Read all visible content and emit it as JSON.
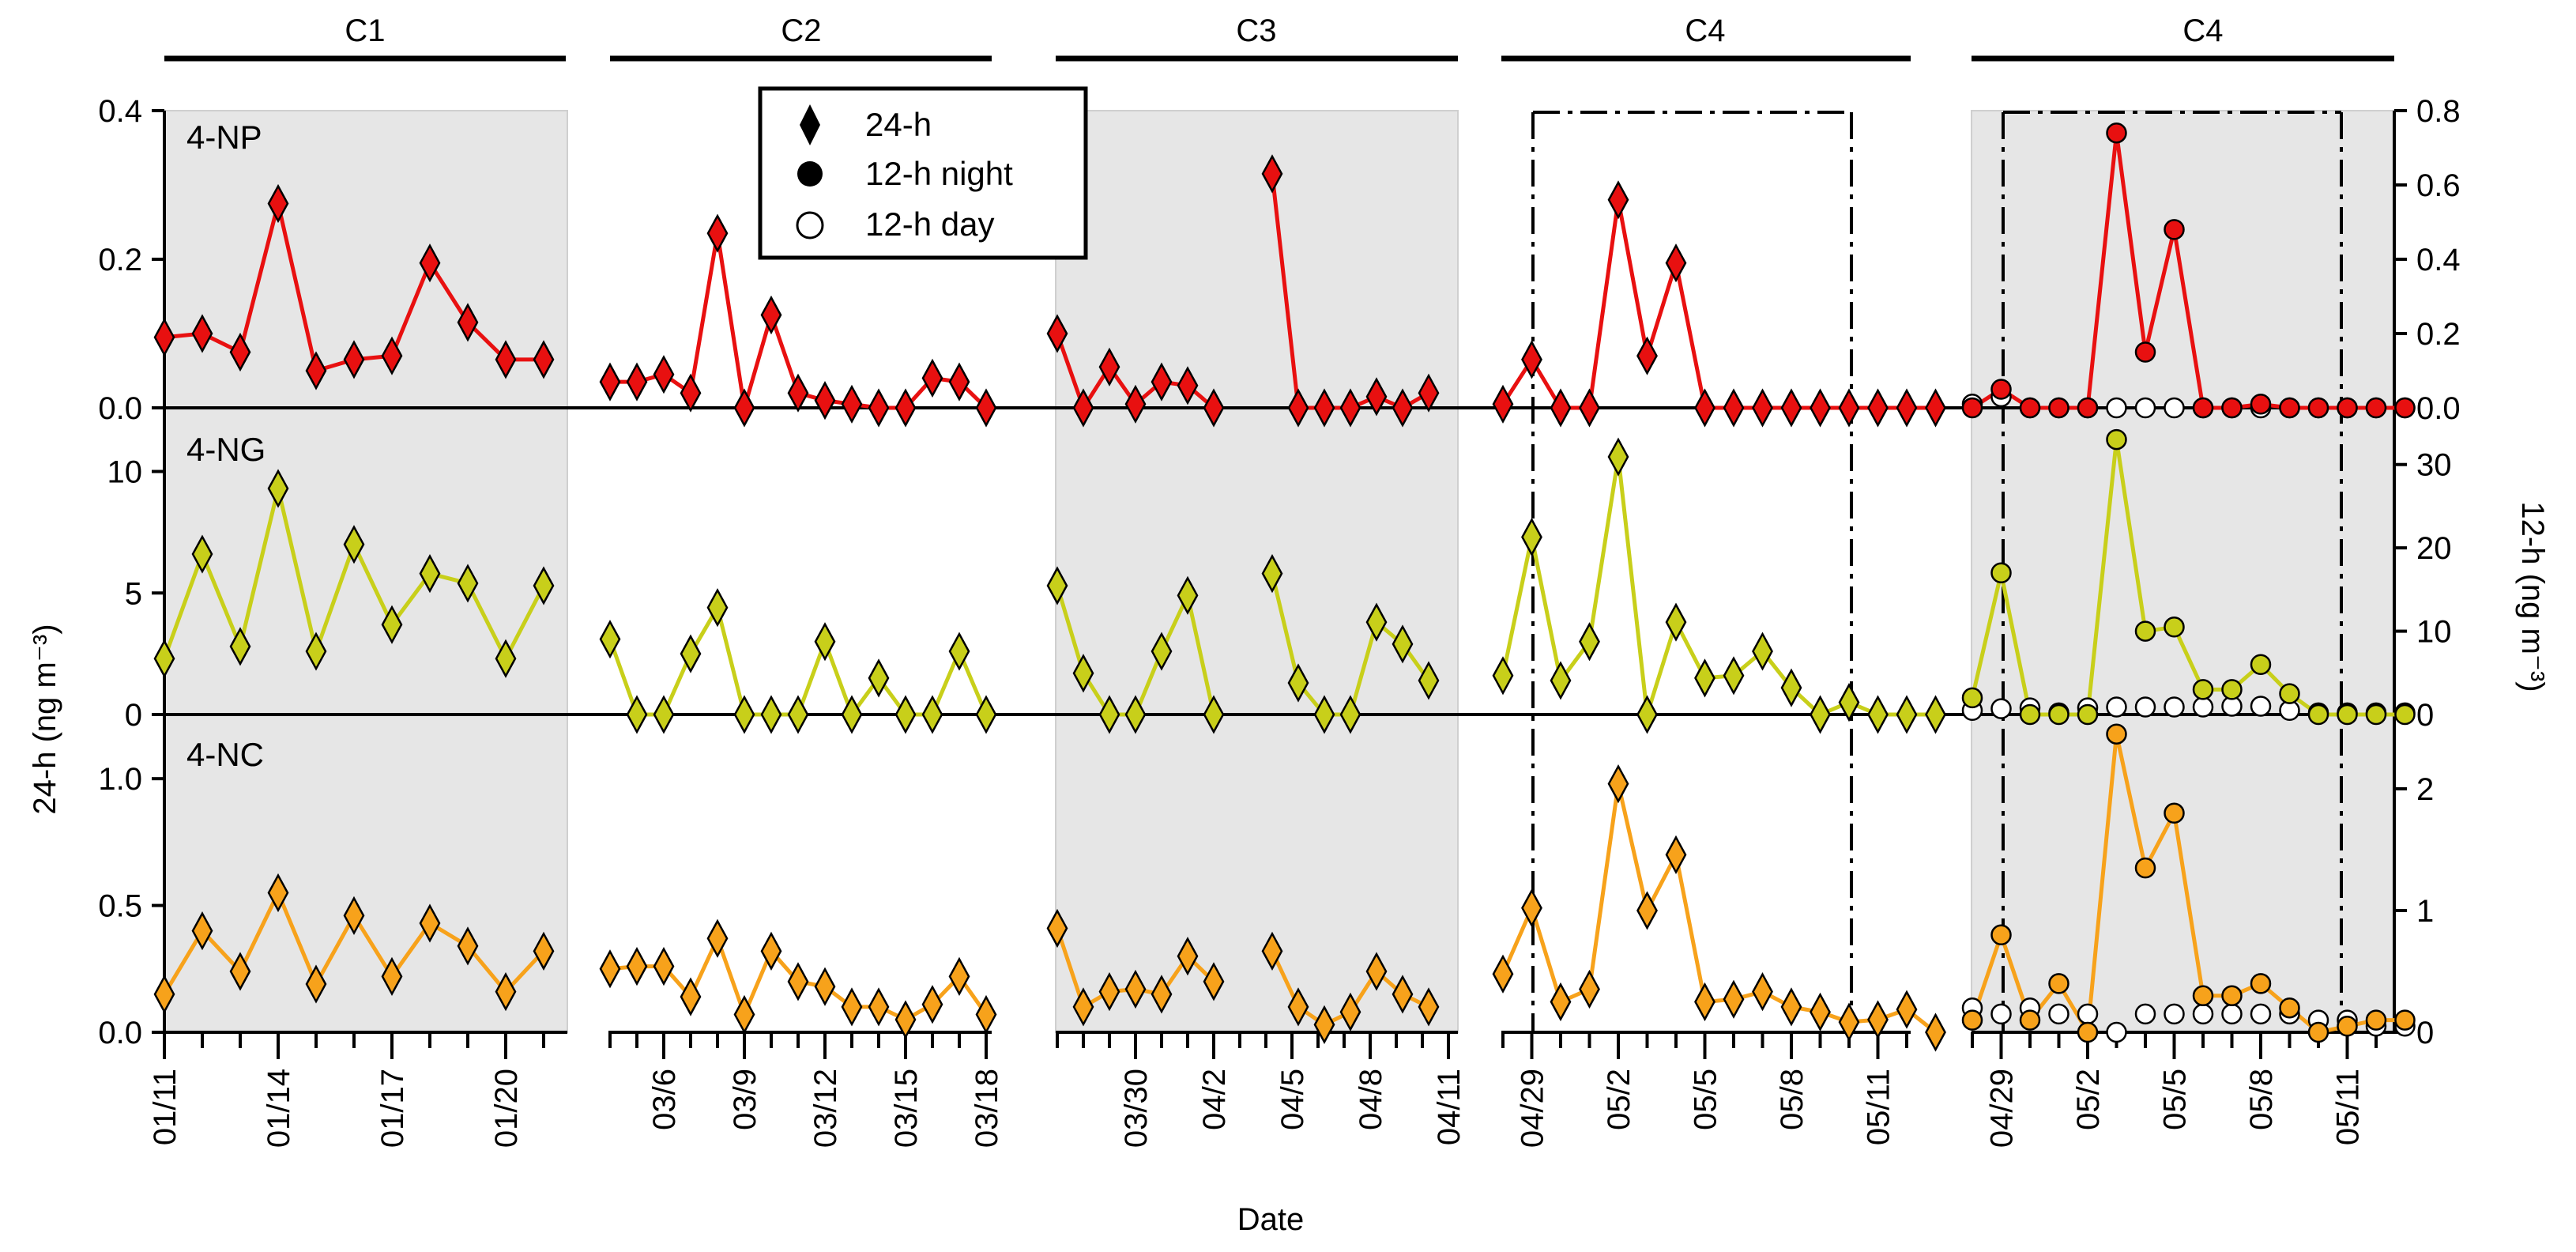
{
  "chart_data": {
    "type": "line",
    "xlabel": "Date",
    "ylabel_left": "24-h (ng m⁻³)",
    "ylabel_right": "12-h (ng m⁻³)",
    "legend": [
      {
        "name": "24-h",
        "marker": "diamond"
      },
      {
        "name": "12-h night",
        "marker": "filled-circle"
      },
      {
        "name": "12-h day",
        "marker": "open-circle"
      }
    ],
    "shaded_groups": [
      "C1",
      "C3",
      "C4 (12-h)"
    ],
    "rows": [
      {
        "label": "4-NP",
        "color": "#e81010",
        "left_ylim": [
          0,
          0.4
        ],
        "left_ticks": [
          "0.0",
          "0.2",
          "0.4"
        ],
        "right_ylim": [
          0,
          0.8
        ],
        "right_ticks": [
          "0.0",
          "0.2",
          "0.4",
          "0.6",
          "0.8"
        ]
      },
      {
        "label": "4-NG",
        "color": "#c8cf1a",
        "left_ylim": [
          0,
          12
        ],
        "left_ticks": [
          "0",
          "5",
          "10"
        ],
        "right_ylim": [
          0,
          35
        ],
        "right_ticks": [
          "0",
          "10",
          "20",
          "30"
        ]
      },
      {
        "label": "4-NC",
        "color": "#f7a21b",
        "left_ylim": [
          0,
          1.2
        ],
        "left_ticks": [
          "0.0",
          "0.5",
          "1.0"
        ],
        "right_ylim": [
          0,
          2.5
        ],
        "right_ticks": [
          "0",
          "1",
          "2"
        ]
      }
    ],
    "campaigns": [
      {
        "label": "C1",
        "shaded": true,
        "type": "24-h",
        "ticks": [
          "01/11",
          "01/14",
          "01/17",
          "01/20"
        ],
        "series": {
          "4-NP": [
            0.095,
            0.1,
            0.075,
            0.275,
            0.05,
            0.065,
            0.07,
            0.195,
            0.115,
            0.065,
            0.065
          ],
          "4-NG": [
            2.3,
            6.6,
            2.8,
            9.3,
            2.6,
            7.0,
            3.7,
            5.8,
            5.4,
            2.3,
            5.3
          ],
          "4-NC": [
            0.15,
            0.4,
            0.24,
            0.55,
            0.19,
            0.46,
            0.22,
            0.43,
            0.34,
            0.16,
            0.32
          ]
        }
      },
      {
        "label": "C2",
        "shaded": false,
        "type": "24-h",
        "ticks": [
          "03/6",
          "03/9",
          "03/12",
          "03/15",
          "03/18"
        ],
        "series": {
          "4-NP": [
            0.035,
            0.035,
            0.045,
            0.02,
            0.235,
            0.0,
            0.125,
            0.02,
            0.01,
            0.005,
            0.0,
            0.0,
            0.04,
            0.035,
            0.0
          ],
          "4-NG": [
            3.1,
            0.0,
            0.0,
            2.5,
            4.4,
            0.0,
            0.0,
            0.0,
            3.0,
            0.0,
            1.5,
            0.0,
            0.0,
            2.6,
            0.0
          ],
          "4-NC": [
            0.25,
            0.26,
            0.26,
            0.14,
            0.37,
            0.07,
            0.32,
            0.2,
            0.18,
            0.1,
            0.1,
            0.05,
            0.11,
            0.22,
            0.07
          ]
        }
      },
      {
        "label": "C3",
        "shaded": true,
        "type": "24-h",
        "ticks": [
          "03/30",
          "04/2",
          "04/5",
          "04/8",
          "04/11"
        ],
        "segments": [
          {
            "4-NP": [
              0.1,
              0.0,
              0.055,
              0.005,
              0.035,
              0.03,
              0.0
            ],
            "4-NG": [
              5.3,
              1.7,
              0.0,
              0.0,
              2.6,
              4.9,
              0.0
            ],
            "4-NC": [
              0.41,
              0.1,
              0.16,
              0.17,
              0.15,
              0.3,
              0.2
            ]
          },
          {
            "4-NP": [
              0.315,
              0.0,
              0.0,
              0.0,
              0.015,
              0.0,
              0.02
            ],
            "4-NG": [
              5.8,
              1.3,
              0.0,
              0.0,
              3.8,
              2.9,
              1.4
            ],
            "4-NC": [
              0.32,
              0.1,
              0.03,
              0.08,
              0.24,
              0.15,
              0.1
            ]
          }
        ]
      },
      {
        "label": "C4",
        "shaded": false,
        "type": "24-h",
        "dashed_box": true,
        "ticks": [
          "04/29",
          "05/2",
          "05/5",
          "05/8",
          "05/11"
        ],
        "series": {
          "4-NP": [
            0.005,
            0.065,
            0.0,
            0.0,
            0.28,
            0.07,
            0.195,
            0.0,
            0.0,
            0.0,
            0.0,
            0.0,
            0.0,
            0.0,
            0.0,
            0.0
          ],
          "4-NG": [
            1.6,
            7.3,
            1.4,
            3.0,
            10.6,
            0.0,
            3.8,
            1.5,
            1.6,
            2.6,
            1.1,
            0.0,
            0.5,
            0.0,
            0.0,
            0.0
          ],
          "4-NC": [
            0.23,
            0.49,
            0.12,
            0.17,
            0.98,
            0.48,
            0.7,
            0.12,
            0.13,
            0.16,
            0.1,
            0.08,
            0.04,
            0.05,
            0.09,
            0.0
          ]
        }
      },
      {
        "label": "C4",
        "shaded": true,
        "type": "12-h",
        "dashed_box": true,
        "ticks": [
          "04/29",
          "05/2",
          "05/5",
          "05/8",
          "05/11"
        ],
        "night": {
          "4-NP": [
            0.0,
            0.05,
            0.0,
            0.0,
            0.0,
            0.74,
            0.15,
            0.48,
            0.0,
            0.0,
            0.01,
            0.0,
            0.0,
            0.0,
            0.0,
            0.0
          ],
          "4-NG": [
            2.0,
            17.0,
            0.0,
            0.0,
            0.0,
            33.0,
            10.0,
            10.5,
            3.0,
            3.0,
            6.0,
            2.5,
            0.0,
            0.0,
            0.0,
            0.0
          ],
          "4-NC": [
            0.1,
            0.8,
            0.1,
            0.4,
            0.0,
            2.45,
            1.35,
            1.8,
            0.3,
            0.3,
            0.4,
            0.2,
            0.0,
            0.05,
            0.1,
            0.1
          ]
        },
        "day": {
          "4-NP": [
            0.01,
            0.03,
            0.0,
            0.0,
            0.0,
            0.0,
            0.0,
            0.0,
            0.0,
            0.0,
            0.0,
            0.0,
            0.0,
            0.0,
            0.0,
            0.0
          ],
          "4-NG": [
            0.5,
            0.7,
            0.8,
            0.2,
            0.8,
            0.9,
            0.9,
            0.9,
            0.9,
            1.0,
            1.0,
            0.5,
            0.2,
            0.2,
            0.2,
            0.2
          ],
          "4-NC": [
            0.2,
            0.15,
            0.2,
            0.15,
            0.15,
            0.0,
            0.15,
            0.15,
            0.15,
            0.15,
            0.15,
            0.15,
            0.1,
            0.1,
            0.05,
            0.05
          ]
        }
      }
    ]
  }
}
